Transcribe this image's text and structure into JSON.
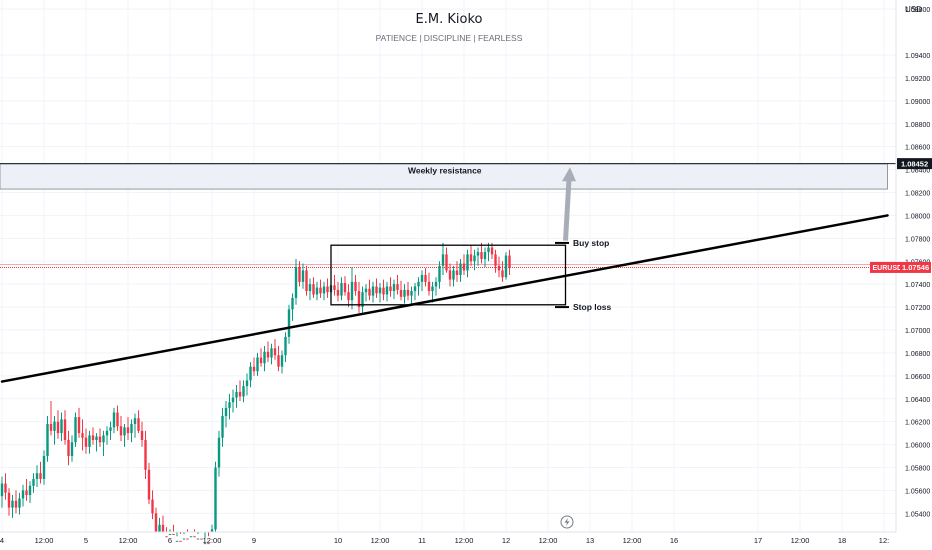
{
  "header": {
    "title": "E.M. Kioko",
    "subtitle": "PATIENCE  |  DISCIPLINE  |  FEARLESS"
  },
  "colors": {
    "up": "#089981",
    "down": "#f23645",
    "grid": "#f0f3fa",
    "axis_text": "#131722",
    "zone_fill": "#eef0f7",
    "zone_border": "#9598a1",
    "price_line": "#f23645",
    "arrow": "#a8adb8"
  },
  "chart_data": {
    "type": "candlestick",
    "symbol": "EURUSD",
    "currency_label": "USD",
    "ylim": [
      1.0508,
      1.0988
    ],
    "y_ticks": [
      1.098,
      1.094,
      1.092,
      1.09,
      1.088,
      1.086,
      1.084,
      1.082,
      1.08,
      1.078,
      1.076,
      1.074,
      1.072,
      1.07,
      1.068,
      1.066,
      1.064,
      1.062,
      1.06,
      1.058,
      1.056,
      1.054
    ],
    "y_tick_labels": [
      "1.09800",
      "1.09400",
      "1.09200",
      "1.09000",
      "1.08800",
      "1.08600",
      "1.08400",
      "1.08200",
      "1.08000",
      "1.07800",
      "1.07600",
      "1.07400",
      "1.07200",
      "1.07000",
      "1.06800",
      "1.06600",
      "1.06400",
      "1.06200",
      "1.06000",
      "1.05800",
      "1.05600",
      "1.05400"
    ],
    "x_ticks": [
      {
        "label": "4",
        "bar": 0
      },
      {
        "label": "12:00",
        "bar": 12
      },
      {
        "label": "5",
        "bar": 24
      },
      {
        "label": "12:00",
        "bar": 36
      },
      {
        "label": "6",
        "bar": 48
      },
      {
        "label": "12:00",
        "bar": 60
      },
      {
        "label": "9",
        "bar": 72
      },
      {
        "label": "10",
        "bar": 96
      },
      {
        "label": "12:00",
        "bar": 108
      },
      {
        "label": "11",
        "bar": 120
      },
      {
        "label": "12:00",
        "bar": 132
      },
      {
        "label": "12",
        "bar": 144
      },
      {
        "label": "12:00",
        "bar": 156
      },
      {
        "label": "13",
        "bar": 168
      },
      {
        "label": "12:00",
        "bar": 180
      },
      {
        "label": "16",
        "bar": 192
      },
      {
        "label": "17",
        "bar": 216
      },
      {
        "label": "12:00",
        "bar": 228
      },
      {
        "label": "18",
        "bar": 240
      },
      {
        "label": "12:",
        "bar": 252
      }
    ],
    "bar_start": 0,
    "bar_end": 256,
    "candles": [
      {
        "o": 1.0555,
        "h": 1.0572,
        "l": 1.0545,
        "c": 1.0566
      },
      {
        "o": 1.0566,
        "h": 1.0575,
        "l": 1.0552,
        "c": 1.0558
      },
      {
        "o": 1.0558,
        "h": 1.0562,
        "l": 1.0538,
        "c": 1.0545
      },
      {
        "o": 1.0545,
        "h": 1.0556,
        "l": 1.0536,
        "c": 1.0551
      },
      {
        "o": 1.0551,
        "h": 1.056,
        "l": 1.054,
        "c": 1.0545
      },
      {
        "o": 1.0545,
        "h": 1.0558,
        "l": 1.0539,
        "c": 1.0553
      },
      {
        "o": 1.0553,
        "h": 1.0565,
        "l": 1.0546,
        "c": 1.056
      },
      {
        "o": 1.056,
        "h": 1.057,
        "l": 1.0551,
        "c": 1.0556
      },
      {
        "o": 1.0556,
        "h": 1.0568,
        "l": 1.0549,
        "c": 1.0564
      },
      {
        "o": 1.0564,
        "h": 1.0575,
        "l": 1.0558,
        "c": 1.057
      },
      {
        "o": 1.057,
        "h": 1.0582,
        "l": 1.0563,
        "c": 1.0575
      },
      {
        "o": 1.0575,
        "h": 1.0585,
        "l": 1.0566,
        "c": 1.057
      },
      {
        "o": 1.057,
        "h": 1.0595,
        "l": 1.0565,
        "c": 1.059
      },
      {
        "o": 1.059,
        "h": 1.0625,
        "l": 1.0585,
        "c": 1.0618
      },
      {
        "o": 1.0618,
        "h": 1.0638,
        "l": 1.0608,
        "c": 1.0612
      },
      {
        "o": 1.0612,
        "h": 1.0625,
        "l": 1.06,
        "c": 1.062
      },
      {
        "o": 1.062,
        "h": 1.063,
        "l": 1.0605,
        "c": 1.061
      },
      {
        "o": 1.061,
        "h": 1.0628,
        "l": 1.0603,
        "c": 1.0622
      },
      {
        "o": 1.0622,
        "h": 1.063,
        "l": 1.06,
        "c": 1.0604
      },
      {
        "o": 1.0604,
        "h": 1.0612,
        "l": 1.0582,
        "c": 1.059
      },
      {
        "o": 1.059,
        "h": 1.0608,
        "l": 1.0585,
        "c": 1.0602
      },
      {
        "o": 1.0602,
        "h": 1.0628,
        "l": 1.0598,
        "c": 1.0624
      },
      {
        "o": 1.0624,
        "h": 1.0632,
        "l": 1.0606,
        "c": 1.061
      },
      {
        "o": 1.061,
        "h": 1.0622,
        "l": 1.0595,
        "c": 1.0606
      },
      {
        "o": 1.0606,
        "h": 1.0614,
        "l": 1.0592,
        "c": 1.0598
      },
      {
        "o": 1.0598,
        "h": 1.0612,
        "l": 1.0592,
        "c": 1.0608
      },
      {
        "o": 1.0608,
        "h": 1.0615,
        "l": 1.06,
        "c": 1.0604
      },
      {
        "o": 1.0604,
        "h": 1.061,
        "l": 1.0594,
        "c": 1.0607
      },
      {
        "o": 1.0607,
        "h": 1.0614,
        "l": 1.0598,
        "c": 1.0602
      },
      {
        "o": 1.0602,
        "h": 1.0612,
        "l": 1.059,
        "c": 1.0608
      },
      {
        "o": 1.0608,
        "h": 1.0616,
        "l": 1.06,
        "c": 1.0612
      },
      {
        "o": 1.0612,
        "h": 1.062,
        "l": 1.0604,
        "c": 1.0615
      },
      {
        "o": 1.0615,
        "h": 1.0632,
        "l": 1.061,
        "c": 1.0628
      },
      {
        "o": 1.0628,
        "h": 1.0634,
        "l": 1.0612,
        "c": 1.0616
      },
      {
        "o": 1.0616,
        "h": 1.0625,
        "l": 1.0603,
        "c": 1.0608
      },
      {
        "o": 1.0608,
        "h": 1.0618,
        "l": 1.0598,
        "c": 1.0615
      },
      {
        "o": 1.0615,
        "h": 1.0624,
        "l": 1.0604,
        "c": 1.061
      },
      {
        "o": 1.061,
        "h": 1.0622,
        "l": 1.0602,
        "c": 1.0618
      },
      {
        "o": 1.0618,
        "h": 1.0627,
        "l": 1.0606,
        "c": 1.0623
      },
      {
        "o": 1.0623,
        "h": 1.063,
        "l": 1.061,
        "c": 1.0612
      },
      {
        "o": 1.0612,
        "h": 1.062,
        "l": 1.0598,
        "c": 1.0604
      },
      {
        "o": 1.0604,
        "h": 1.0612,
        "l": 1.057,
        "c": 1.0578
      },
      {
        "o": 1.0578,
        "h": 1.0584,
        "l": 1.0548,
        "c": 1.0552
      },
      {
        "o": 1.0552,
        "h": 1.056,
        "l": 1.0535,
        "c": 1.054
      },
      {
        "o": 1.054,
        "h": 1.0545,
        "l": 1.0516,
        "c": 1.0522
      },
      {
        "o": 1.0522,
        "h": 1.0536,
        "l": 1.0515,
        "c": 1.053
      },
      {
        "o": 1.053,
        "h": 1.0538,
        "l": 1.0515,
        "c": 1.052
      },
      {
        "o": 1.052,
        "h": 1.0528,
        "l": 1.0508,
        "c": 1.0512
      },
      {
        "o": 1.0512,
        "h": 1.0526,
        "l": 1.0508,
        "c": 1.0522
      },
      {
        "o": 1.0522,
        "h": 1.053,
        "l": 1.0508,
        "c": 1.0512
      },
      {
        "o": 1.0512,
        "h": 1.052,
        "l": 1.0508,
        "c": 1.0516
      },
      {
        "o": 1.0516,
        "h": 1.0522,
        "l": 1.0508,
        "c": 1.0511
      },
      {
        "o": 1.0511,
        "h": 1.0522,
        "l": 1.0508,
        "c": 1.0518
      },
      {
        "o": 1.0518,
        "h": 1.0526,
        "l": 1.0508,
        "c": 1.0512
      },
      {
        "o": 1.0512,
        "h": 1.0524,
        "l": 1.0508,
        "c": 1.052
      },
      {
        "o": 1.052,
        "h": 1.0526,
        "l": 1.051,
        "c": 1.0514
      },
      {
        "o": 1.0514,
        "h": 1.0522,
        "l": 1.0508,
        "c": 1.0518
      },
      {
        "o": 1.0518,
        "h": 1.0524,
        "l": 1.0508,
        "c": 1.0512
      },
      {
        "o": 1.0512,
        "h": 1.0518,
        "l": 1.0508,
        "c": 1.0514
      },
      {
        "o": 1.0514,
        "h": 1.052,
        "l": 1.0508,
        "c": 1.051
      },
      {
        "o": 1.051,
        "h": 1.053,
        "l": 1.0508,
        "c": 1.0526
      },
      {
        "o": 1.0526,
        "h": 1.0585,
        "l": 1.052,
        "c": 1.058
      },
      {
        "o": 1.058,
        "h": 1.0612,
        "l": 1.0572,
        "c": 1.0606
      },
      {
        "o": 1.0606,
        "h": 1.0632,
        "l": 1.0598,
        "c": 1.0625
      },
      {
        "o": 1.0625,
        "h": 1.0638,
        "l": 1.0615,
        "c": 1.0632
      },
      {
        "o": 1.0632,
        "h": 1.0644,
        "l": 1.0622,
        "c": 1.0637
      },
      {
        "o": 1.0637,
        "h": 1.0648,
        "l": 1.0628,
        "c": 1.0641
      },
      {
        "o": 1.0641,
        "h": 1.0652,
        "l": 1.0632,
        "c": 1.0646
      },
      {
        "o": 1.0646,
        "h": 1.0656,
        "l": 1.0638,
        "c": 1.0642
      },
      {
        "o": 1.0642,
        "h": 1.0656,
        "l": 1.0637,
        "c": 1.0651
      },
      {
        "o": 1.0651,
        "h": 1.0662,
        "l": 1.0643,
        "c": 1.0656
      },
      {
        "o": 1.0656,
        "h": 1.0672,
        "l": 1.065,
        "c": 1.0668
      },
      {
        "o": 1.0668,
        "h": 1.0676,
        "l": 1.066,
        "c": 1.0664
      },
      {
        "o": 1.0664,
        "h": 1.068,
        "l": 1.066,
        "c": 1.0676
      },
      {
        "o": 1.0676,
        "h": 1.0684,
        "l": 1.0668,
        "c": 1.0671
      },
      {
        "o": 1.0671,
        "h": 1.0686,
        "l": 1.0664,
        "c": 1.0681
      },
      {
        "o": 1.0681,
        "h": 1.069,
        "l": 1.0672,
        "c": 1.0676
      },
      {
        "o": 1.0676,
        "h": 1.0688,
        "l": 1.067,
        "c": 1.0684
      },
      {
        "o": 1.0684,
        "h": 1.0692,
        "l": 1.0674,
        "c": 1.0678
      },
      {
        "o": 1.0678,
        "h": 1.0686,
        "l": 1.0664,
        "c": 1.0668
      },
      {
        "o": 1.0668,
        "h": 1.0682,
        "l": 1.0662,
        "c": 1.0678
      },
      {
        "o": 1.0678,
        "h": 1.0698,
        "l": 1.0672,
        "c": 1.0694
      },
      {
        "o": 1.0694,
        "h": 1.0722,
        "l": 1.0688,
        "c": 1.0718
      },
      {
        "o": 1.0718,
        "h": 1.0732,
        "l": 1.0708,
        "c": 1.0728
      },
      {
        "o": 1.0728,
        "h": 1.0762,
        "l": 1.0722,
        "c": 1.0755
      },
      {
        "o": 1.0755,
        "h": 1.076,
        "l": 1.0738,
        "c": 1.0742
      },
      {
        "o": 1.0742,
        "h": 1.0758,
        "l": 1.0736,
        "c": 1.0752
      },
      {
        "o": 1.0752,
        "h": 1.0756,
        "l": 1.073,
        "c": 1.0734
      },
      {
        "o": 1.0734,
        "h": 1.0745,
        "l": 1.0726,
        "c": 1.074
      },
      {
        "o": 1.074,
        "h": 1.0746,
        "l": 1.0728,
        "c": 1.0731
      },
      {
        "o": 1.0731,
        "h": 1.0742,
        "l": 1.0726,
        "c": 1.0737
      },
      {
        "o": 1.0737,
        "h": 1.0744,
        "l": 1.0728,
        "c": 1.0732
      },
      {
        "o": 1.0732,
        "h": 1.0742,
        "l": 1.0726,
        "c": 1.0738
      },
      {
        "o": 1.0738,
        "h": 1.0745,
        "l": 1.0728,
        "c": 1.0733
      },
      {
        "o": 1.0733,
        "h": 1.0744,
        "l": 1.0726,
        "c": 1.0739
      },
      {
        "o": 1.0739,
        "h": 1.0748,
        "l": 1.073,
        "c": 1.0735
      },
      {
        "o": 1.0735,
        "h": 1.0742,
        "l": 1.0725,
        "c": 1.073
      },
      {
        "o": 1.073,
        "h": 1.0746,
        "l": 1.0726,
        "c": 1.0741
      },
      {
        "o": 1.0741,
        "h": 1.0747,
        "l": 1.073,
        "c": 1.0733
      },
      {
        "o": 1.0733,
        "h": 1.074,
        "l": 1.072,
        "c": 1.0726
      },
      {
        "o": 1.0726,
        "h": 1.0755,
        "l": 1.0718,
        "c": 1.0742
      },
      {
        "o": 1.0742,
        "h": 1.0748,
        "l": 1.073,
        "c": 1.0734
      },
      {
        "o": 1.0734,
        "h": 1.0742,
        "l": 1.0715,
        "c": 1.072
      },
      {
        "o": 1.072,
        "h": 1.0738,
        "l": 1.0714,
        "c": 1.0733
      },
      {
        "o": 1.0733,
        "h": 1.074,
        "l": 1.0725,
        "c": 1.0736
      },
      {
        "o": 1.0736,
        "h": 1.0744,
        "l": 1.0726,
        "c": 1.073
      },
      {
        "o": 1.073,
        "h": 1.0742,
        "l": 1.0724,
        "c": 1.0738
      },
      {
        "o": 1.0738,
        "h": 1.0745,
        "l": 1.0728,
        "c": 1.0732
      },
      {
        "o": 1.0732,
        "h": 1.0741,
        "l": 1.0724,
        "c": 1.0737
      },
      {
        "o": 1.0737,
        "h": 1.0744,
        "l": 1.0726,
        "c": 1.0731
      },
      {
        "o": 1.0731,
        "h": 1.0742,
        "l": 1.0725,
        "c": 1.0738
      },
      {
        "o": 1.0738,
        "h": 1.0746,
        "l": 1.0729,
        "c": 1.0734
      },
      {
        "o": 1.0734,
        "h": 1.0744,
        "l": 1.0727,
        "c": 1.074
      },
      {
        "o": 1.074,
        "h": 1.0748,
        "l": 1.0731,
        "c": 1.0735
      },
      {
        "o": 1.0735,
        "h": 1.0743,
        "l": 1.0726,
        "c": 1.0729
      },
      {
        "o": 1.0729,
        "h": 1.074,
        "l": 1.0723,
        "c": 1.0735
      },
      {
        "o": 1.0735,
        "h": 1.0742,
        "l": 1.0726,
        "c": 1.073
      },
      {
        "o": 1.073,
        "h": 1.0738,
        "l": 1.0722,
        "c": 1.0734
      },
      {
        "o": 1.0734,
        "h": 1.0741,
        "l": 1.0726,
        "c": 1.0738
      },
      {
        "o": 1.0738,
        "h": 1.0746,
        "l": 1.073,
        "c": 1.0742
      },
      {
        "o": 1.0742,
        "h": 1.0752,
        "l": 1.0734,
        "c": 1.0748
      },
      {
        "o": 1.0748,
        "h": 1.0754,
        "l": 1.0738,
        "c": 1.0742
      },
      {
        "o": 1.0742,
        "h": 1.075,
        "l": 1.073,
        "c": 1.0734
      },
      {
        "o": 1.0734,
        "h": 1.0742,
        "l": 1.0724,
        "c": 1.0738
      },
      {
        "o": 1.0738,
        "h": 1.0746,
        "l": 1.073,
        "c": 1.0742
      },
      {
        "o": 1.0742,
        "h": 1.076,
        "l": 1.0736,
        "c": 1.0756
      },
      {
        "o": 1.0756,
        "h": 1.0776,
        "l": 1.0748,
        "c": 1.0766
      },
      {
        "o": 1.0766,
        "h": 1.0772,
        "l": 1.075,
        "c": 1.0752
      },
      {
        "o": 1.0752,
        "h": 1.0758,
        "l": 1.0738,
        "c": 1.0744
      },
      {
        "o": 1.0744,
        "h": 1.0756,
        "l": 1.0738,
        "c": 1.0752
      },
      {
        "o": 1.0752,
        "h": 1.076,
        "l": 1.0742,
        "c": 1.0748
      },
      {
        "o": 1.0748,
        "h": 1.0762,
        "l": 1.0742,
        "c": 1.0758
      },
      {
        "o": 1.0758,
        "h": 1.0766,
        "l": 1.0748,
        "c": 1.0752
      },
      {
        "o": 1.0752,
        "h": 1.077,
        "l": 1.0746,
        "c": 1.0766
      },
      {
        "o": 1.0766,
        "h": 1.0774,
        "l": 1.0756,
        "c": 1.076
      },
      {
        "o": 1.076,
        "h": 1.077,
        "l": 1.0752,
        "c": 1.0765
      },
      {
        "o": 1.0765,
        "h": 1.0772,
        "l": 1.0756,
        "c": 1.0768
      },
      {
        "o": 1.0768,
        "h": 1.0776,
        "l": 1.0758,
        "c": 1.0762
      },
      {
        "o": 1.0762,
        "h": 1.0772,
        "l": 1.0755,
        "c": 1.0768
      },
      {
        "o": 1.0768,
        "h": 1.0776,
        "l": 1.076,
        "c": 1.0772
      },
      {
        "o": 1.0772,
        "h": 1.0776,
        "l": 1.0762,
        "c": 1.0766
      },
      {
        "o": 1.0766,
        "h": 1.077,
        "l": 1.075,
        "c": 1.0756
      },
      {
        "o": 1.0756,
        "h": 1.0764,
        "l": 1.0746,
        "c": 1.0752
      },
      {
        "o": 1.0752,
        "h": 1.076,
        "l": 1.0742,
        "c": 1.0746
      },
      {
        "o": 1.0746,
        "h": 1.0768,
        "l": 1.0744,
        "c": 1.0765
      },
      {
        "o": 1.0765,
        "h": 1.077,
        "l": 1.0748,
        "c": 1.07546
      }
    ],
    "current_price": 1.07546,
    "current_price_label": "1.07546",
    "resistance_price_label": "1.08452",
    "resistance_price": 1.08452,
    "resistance_zone": {
      "from": 1.0823,
      "to": 1.0845,
      "bar_from": 0,
      "bar_to": 253,
      "label": "Weekly resistance"
    },
    "consolidation_box": {
      "bar_from": 94,
      "bar_to": 161,
      "price_high": 1.0774,
      "price_low": 1.0722
    },
    "trendline": {
      "bar_from": 0,
      "price_from": 1.0655,
      "bar_to": 253,
      "price_to": 1.08
    },
    "buy_stop": {
      "label": "Buy stop",
      "price": 1.0776,
      "bar_from": 158,
      "bar_to": 162
    },
    "stop_loss": {
      "label": "Stop loss",
      "price": 1.072,
      "bar_from": 158,
      "bar_to": 162
    },
    "projection_arrow": {
      "bar_from": 161,
      "price_from": 1.0778,
      "bar_to": 162,
      "price_to": 1.0842
    }
  }
}
